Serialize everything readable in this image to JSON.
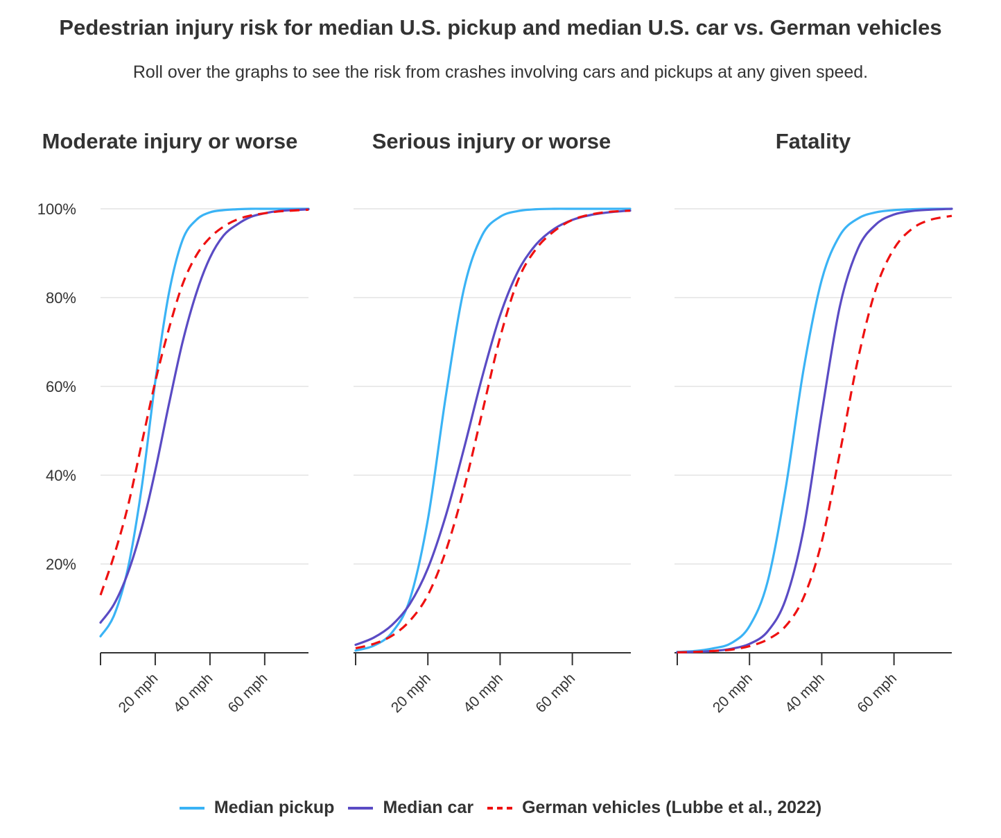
{
  "title": "Pedestrian injury risk for median U.S. pickup and median U.S. car vs. German vehicles",
  "subtitle": "Roll over the graphs to see the risk from crashes involving cars and pickups at any given speed.",
  "colors": {
    "pickup": "#3ab3f5",
    "car": "#5a4bc4",
    "german": "#ee1111",
    "grid": "#dddddd",
    "axis": "#333333"
  },
  "y_ticks": [
    "20%",
    "40%",
    "60%",
    "80%",
    "100%"
  ],
  "x_ticks": [
    "20 mph",
    "40 mph",
    "60 mph"
  ],
  "legend": [
    {
      "label": "Median pickup",
      "color": "#3ab3f5",
      "dashed": false
    },
    {
      "label": "Median car",
      "color": "#5a4bc4",
      "dashed": false
    },
    {
      "label": "German vehicles (Lubbe et al., 2022)",
      "color": "#ee1111",
      "dashed": true
    }
  ],
  "chart_data": [
    {
      "type": "line",
      "title": "Moderate injury or worse",
      "xlim": [
        0,
        76
      ],
      "ylim": [
        0,
        100
      ],
      "x_ticks": [
        20,
        40,
        60
      ],
      "y_ticks": [
        20,
        40,
        60,
        80,
        100
      ],
      "series": [
        {
          "name": "Median pickup",
          "x": [
            0,
            5,
            10,
            15,
            20,
            25,
            30,
            35,
            40,
            45,
            50,
            55,
            60,
            65,
            70,
            76
          ],
          "y": [
            3.7,
            8.5,
            19,
            37,
            61,
            81,
            93,
            97.5,
            99.2,
            99.7,
            99.9,
            100,
            100,
            100,
            100,
            100
          ]
        },
        {
          "name": "Median car",
          "x": [
            0,
            5,
            10,
            15,
            20,
            25,
            30,
            35,
            40,
            45,
            50,
            55,
            60,
            65,
            70,
            76
          ],
          "y": [
            6.8,
            11,
            18,
            28,
            41,
            56,
            70,
            81,
            89,
            94,
            96.5,
            98.2,
            99,
            99.5,
            99.7,
            99.9
          ]
        },
        {
          "name": "German vehicles (Lubbe et al., 2022)",
          "x": [
            0,
            5,
            10,
            15,
            20,
            25,
            30,
            35,
            40,
            45,
            50,
            55,
            60,
            65,
            70,
            76
          ],
          "y": [
            13,
            22,
            33,
            47,
            61,
            73,
            83,
            89.5,
            93.5,
            96,
            97.6,
            98.5,
            99,
            99.4,
            99.6,
            99.8
          ]
        }
      ]
    },
    {
      "type": "line",
      "title": "Serious injury or worse",
      "xlim": [
        0,
        76
      ],
      "ylim": [
        0,
        100
      ],
      "x_ticks": [
        20,
        40,
        60
      ],
      "y_ticks": [
        20,
        40,
        60,
        80,
        100
      ],
      "series": [
        {
          "name": "Median pickup",
          "x": [
            0,
            5,
            10,
            15,
            20,
            25,
            30,
            35,
            40,
            45,
            50,
            55,
            60,
            65,
            70,
            76
          ],
          "y": [
            0.5,
            1.6,
            4.5,
            12,
            30,
            58,
            82,
            94,
            98.2,
            99.5,
            99.9,
            100,
            100,
            100,
            100,
            100
          ]
        },
        {
          "name": "Median car",
          "x": [
            0,
            5,
            10,
            15,
            20,
            25,
            30,
            35,
            40,
            45,
            50,
            55,
            60,
            65,
            70,
            76
          ],
          "y": [
            1.8,
            3.4,
            6.2,
            11,
            19,
            31,
            46,
            62,
            76,
            86,
            92,
            95.5,
            97.5,
            98.6,
            99.2,
            99.6
          ]
        },
        {
          "name": "German vehicles (Lubbe et al., 2022)",
          "x": [
            0,
            5,
            10,
            15,
            20,
            25,
            30,
            35,
            40,
            45,
            50,
            55,
            60,
            65,
            70,
            76
          ],
          "y": [
            1,
            2,
            3.8,
            7.2,
            13,
            23,
            37,
            54,
            71,
            84,
            91,
            95,
            97.5,
            98.7,
            99.3,
            99.6
          ]
        }
      ]
    },
    {
      "type": "line",
      "title": "Fatality",
      "xlim": [
        0,
        76
      ],
      "ylim": [
        0,
        100
      ],
      "x_ticks": [
        20,
        40,
        60
      ],
      "y_ticks": [
        20,
        40,
        60,
        80,
        100
      ],
      "series": [
        {
          "name": "Median pickup",
          "x": [
            0,
            5,
            10,
            15,
            20,
            25,
            30,
            35,
            40,
            45,
            50,
            55,
            60,
            65,
            70,
            76
          ],
          "y": [
            0.2,
            0.4,
            1,
            2.2,
            6,
            16,
            37,
            64,
            84,
            94,
            97.8,
            99.2,
            99.7,
            99.9,
            100,
            100
          ]
        },
        {
          "name": "Median car",
          "x": [
            0,
            5,
            10,
            15,
            20,
            25,
            30,
            35,
            40,
            45,
            50,
            55,
            60,
            65,
            70,
            76
          ],
          "y": [
            0.1,
            0.2,
            0.4,
            0.9,
            2,
            4.8,
            12,
            28,
            54,
            78,
            91,
            96.5,
            98.7,
            99.5,
            99.8,
            100
          ]
        },
        {
          "name": "German vehicles (Lubbe et al., 2022)",
          "x": [
            0,
            5,
            10,
            15,
            20,
            25,
            30,
            35,
            40,
            45,
            50,
            55,
            60,
            65,
            70,
            76
          ],
          "y": [
            0.1,
            0.2,
            0.4,
            0.7,
            1.5,
            3,
            6,
            12.5,
            25,
            45,
            66,
            82,
            91,
            95.5,
            97.5,
            98.4
          ]
        }
      ]
    }
  ]
}
